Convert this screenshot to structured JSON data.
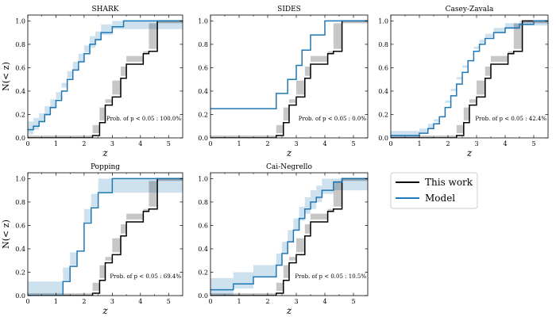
{
  "chart_data": [
    {
      "type": "line",
      "title": "SHARK",
      "xlabel": "z",
      "ylabel": "N(< z)",
      "xlim": [
        0,
        5.5
      ],
      "ylim": [
        0,
        1.05
      ],
      "xticks": [
        0,
        1,
        2,
        3,
        4,
        5
      ],
      "yticks": [
        0.0,
        0.2,
        0.4,
        0.6,
        0.8,
        1.0
      ],
      "annotation": "Prob. of p < 0.05 : 100.0%",
      "series": [
        {
          "name": "This work",
          "color": "#000000",
          "x": [
            0,
            2.3,
            2.55,
            2.75,
            3.0,
            3.3,
            3.5,
            4.1,
            4.3,
            4.6,
            5.5
          ],
          "y": [
            0,
            0.02,
            0.13,
            0.28,
            0.35,
            0.51,
            0.63,
            0.72,
            0.74,
            1.0,
            1.0
          ]
        },
        {
          "name": "Model",
          "color": "#1f77b4",
          "x": [
            0,
            0.2,
            0.4,
            0.6,
            0.8,
            1.0,
            1.2,
            1.4,
            1.6,
            1.8,
            2.0,
            2.2,
            2.4,
            2.6,
            3.0,
            3.4,
            5.5
          ],
          "y": [
            0.07,
            0.1,
            0.14,
            0.2,
            0.26,
            0.32,
            0.4,
            0.5,
            0.58,
            0.65,
            0.72,
            0.8,
            0.84,
            0.9,
            0.95,
            1.0,
            1.0
          ]
        }
      ]
    },
    {
      "type": "line",
      "title": "SIDES",
      "xlabel": "z",
      "xlim": [
        0,
        5.5
      ],
      "ylim": [
        0,
        1.05
      ],
      "xticks": [
        0,
        1,
        2,
        3,
        4,
        5
      ],
      "yticks": [
        0.0,
        0.2,
        0.4,
        0.6,
        0.8,
        1.0
      ],
      "annotation": "Prob. of p < 0.05 : 0.0%",
      "series": [
        {
          "name": "This work",
          "color": "#000000",
          "x": [
            0,
            2.3,
            2.55,
            2.75,
            3.0,
            3.3,
            3.5,
            4.1,
            4.3,
            4.6,
            5.5
          ],
          "y": [
            0,
            0.02,
            0.13,
            0.28,
            0.35,
            0.51,
            0.63,
            0.72,
            0.74,
            1.0,
            1.0
          ]
        },
        {
          "name": "Model",
          "color": "#1f77b4",
          "x": [
            0,
            2.3,
            2.7,
            3.0,
            3.2,
            3.5,
            4.0,
            5.5
          ],
          "y": [
            0.25,
            0.38,
            0.5,
            0.62,
            0.75,
            0.88,
            1.0,
            1.0
          ]
        }
      ]
    },
    {
      "type": "line",
      "title": "Casey-Zavala",
      "xlabel": "z",
      "xlim": [
        0,
        5.5
      ],
      "ylim": [
        0,
        1.05
      ],
      "xticks": [
        0,
        1,
        2,
        3,
        4,
        5
      ],
      "yticks": [
        0.0,
        0.2,
        0.4,
        0.6,
        0.8,
        1.0
      ],
      "annotation": "Prob. of p < 0.05 : 42.4%",
      "series": [
        {
          "name": "This work",
          "color": "#000000",
          "x": [
            0,
            2.3,
            2.55,
            2.75,
            3.0,
            3.3,
            3.5,
            4.1,
            4.3,
            4.6,
            5.5
          ],
          "y": [
            0,
            0.02,
            0.13,
            0.28,
            0.35,
            0.51,
            0.63,
            0.72,
            0.74,
            1.0,
            1.0
          ]
        },
        {
          "name": "Model",
          "color": "#1f77b4",
          "x": [
            0,
            1.0,
            1.3,
            1.5,
            1.7,
            1.9,
            2.1,
            2.3,
            2.5,
            2.7,
            2.9,
            3.1,
            3.3,
            3.6,
            4.0,
            4.5,
            5.0,
            5.5
          ],
          "y": [
            0.02,
            0.04,
            0.08,
            0.12,
            0.18,
            0.26,
            0.36,
            0.46,
            0.56,
            0.66,
            0.74,
            0.8,
            0.85,
            0.9,
            0.94,
            0.97,
            1.0,
            1.0
          ]
        }
      ]
    },
    {
      "type": "line",
      "title": "Popping",
      "xlabel": "z",
      "ylabel": "N(< z)",
      "xlim": [
        0,
        5.5
      ],
      "ylim": [
        0,
        1.05
      ],
      "xticks": [
        0,
        1,
        2,
        3,
        4,
        5
      ],
      "yticks": [
        0.0,
        0.2,
        0.4,
        0.6,
        0.8,
        1.0
      ],
      "annotation": "Prob. of p < 0.05 : 69.4%",
      "series": [
        {
          "name": "This work",
          "color": "#000000",
          "x": [
            0,
            2.3,
            2.55,
            2.75,
            3.0,
            3.3,
            3.5,
            4.1,
            4.3,
            4.6,
            5.5
          ],
          "y": [
            0,
            0.02,
            0.13,
            0.28,
            0.35,
            0.51,
            0.63,
            0.72,
            0.74,
            1.0,
            1.0
          ]
        },
        {
          "name": "Model",
          "color": "#1f77b4",
          "x": [
            0,
            1.25,
            1.5,
            1.75,
            2.0,
            2.25,
            2.5,
            3.0,
            5.5
          ],
          "y": [
            0,
            0.12,
            0.25,
            0.38,
            0.62,
            0.75,
            0.88,
            1.0,
            1.0
          ]
        }
      ]
    },
    {
      "type": "line",
      "title": "Cai-Negrello",
      "xlabel": "z",
      "xlim": [
        0,
        5.5
      ],
      "ylim": [
        0,
        1.05
      ],
      "xticks": [
        0,
        1,
        2,
        3,
        4,
        5
      ],
      "yticks": [
        0.0,
        0.2,
        0.4,
        0.6,
        0.8,
        1.0
      ],
      "annotation": "Prob. of p < 0.05 : 10.5%",
      "series": [
        {
          "name": "This work",
          "color": "#000000",
          "x": [
            0,
            2.3,
            2.55,
            2.75,
            3.0,
            3.3,
            3.5,
            4.1,
            4.3,
            4.6,
            5.5
          ],
          "y": [
            0,
            0.02,
            0.13,
            0.28,
            0.35,
            0.51,
            0.63,
            0.72,
            0.74,
            1.0,
            1.0
          ]
        },
        {
          "name": "Model",
          "color": "#1f77b4",
          "x": [
            0,
            0.8,
            1.5,
            2.3,
            2.5,
            2.7,
            2.9,
            3.1,
            3.3,
            3.5,
            3.7,
            3.9,
            4.3,
            4.6,
            5.5
          ],
          "y": [
            0.05,
            0.1,
            0.16,
            0.26,
            0.36,
            0.46,
            0.56,
            0.66,
            0.74,
            0.8,
            0.84,
            0.9,
            0.97,
            1.0,
            1.0
          ]
        }
      ]
    }
  ],
  "legend": {
    "items": [
      {
        "label": "This work",
        "color": "#000000"
      },
      {
        "label": "Model",
        "color": "#1f77b4"
      }
    ]
  }
}
